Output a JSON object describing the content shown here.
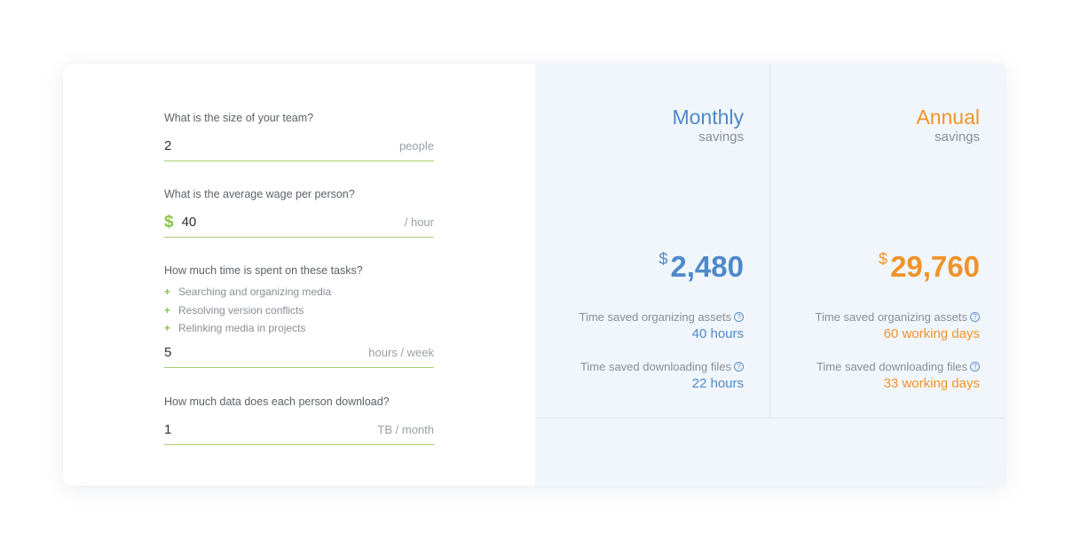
{
  "form": {
    "team": {
      "question": "What is the size of your team?",
      "value": "2",
      "unit": "people"
    },
    "wage": {
      "question": "What is the average wage per person?",
      "currency": "$",
      "value": "40",
      "unit": "/ hour"
    },
    "time": {
      "question": "How much time is spent on these tasks?",
      "tasks": [
        "Searching and organizing media",
        "Resolving version conflicts",
        "Relinking media in projects"
      ],
      "value": "5",
      "unit": "hours / week"
    },
    "data": {
      "question": "How much data does each person download?",
      "value": "1",
      "unit": "TB / month"
    }
  },
  "results": {
    "monthly": {
      "heading": "Monthly",
      "sub": "savings",
      "currency": "$",
      "amount": "2,480",
      "organizing_label": "Time saved organizing assets",
      "organizing_value": "40 hours",
      "downloading_label": "Time saved downloading files",
      "downloading_value": "22 hours"
    },
    "annual": {
      "heading": "Annual",
      "sub": "savings",
      "currency": "$",
      "amount": "29,760",
      "organizing_label": "Time saved organizing assets",
      "organizing_value": "60 working days",
      "downloading_label": "Time saved downloading files",
      "downloading_value": "33 working days"
    },
    "help_glyph": "?"
  },
  "colors": {
    "accent_green": "#8cc34a",
    "monthly_blue": "#4f89c8",
    "annual_orange": "#f0942a",
    "panel_bg": "#f1f6fc"
  }
}
